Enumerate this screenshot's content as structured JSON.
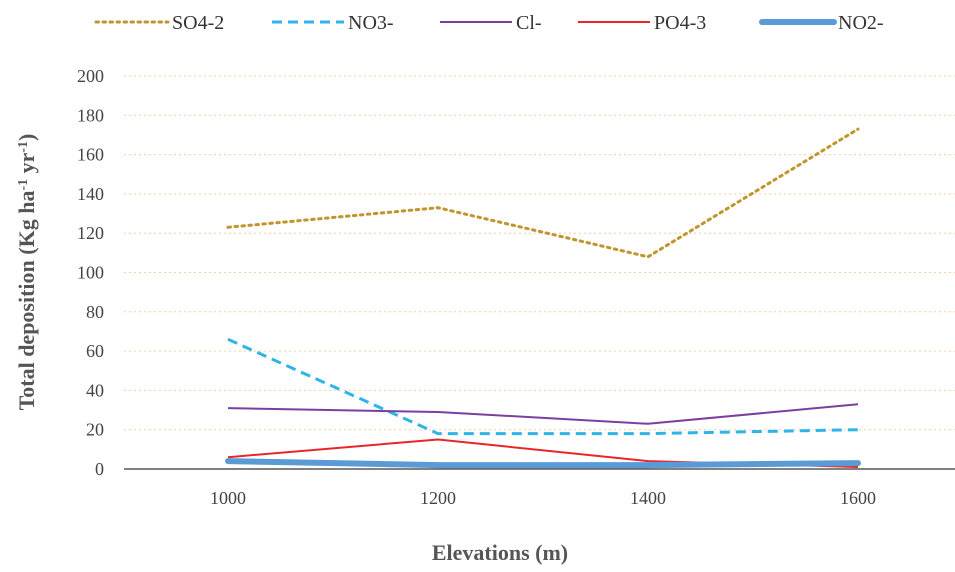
{
  "chart_data": {
    "type": "line",
    "x": [
      1000,
      1200,
      1400,
      1600
    ],
    "series": [
      {
        "name": "SO4-2",
        "values": [
          123,
          133,
          108,
          173
        ],
        "color": "#C0952E",
        "dash": "dotted"
      },
      {
        "name": "NO3-",
        "values": [
          66,
          18,
          18,
          20
        ],
        "color": "#2FB4E7",
        "dash": "dashed"
      },
      {
        "name": "Cl-",
        "values": [
          31,
          29,
          23,
          33
        ],
        "color": "#7A3FA0",
        "dash": "solid"
      },
      {
        "name": "PO4-3",
        "values": [
          6,
          15,
          4,
          1
        ],
        "color": "#E8262A",
        "dash": "solid"
      },
      {
        "name": "NO2-",
        "values": [
          4,
          2,
          2,
          3
        ],
        "color": "#5B9BD5",
        "dash": "thick"
      }
    ],
    "xticks": [
      "1000",
      "1200",
      "1400",
      "1600"
    ],
    "yticks": [
      "0",
      "20",
      "40",
      "60",
      "80",
      "100",
      "120",
      "140",
      "160",
      "180",
      "200"
    ],
    "ylim": [
      0,
      200
    ],
    "ylabel_main": "Total deposition (Kg ha",
    "ylabel_sup1": "-1",
    "ylabel_mid": " yr",
    "ylabel_sup2": "-1",
    "ylabel_end": ")",
    "xlabel": "Elevations (m)",
    "grid": true,
    "legend_position": "top"
  }
}
